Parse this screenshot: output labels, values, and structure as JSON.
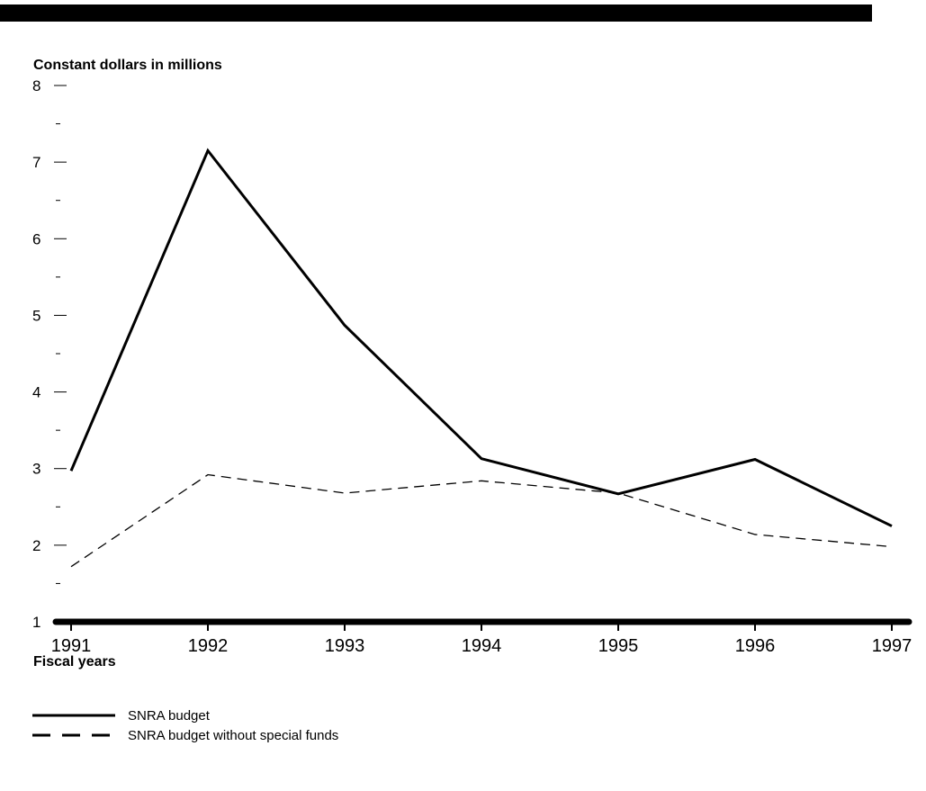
{
  "chart_data": {
    "type": "line",
    "ylabel": "Constant dollars in millions",
    "xlabel": "Fiscal years",
    "ylim": [
      1,
      8
    ],
    "y_tick_labels": [
      "1",
      "2",
      "3",
      "4",
      "5",
      "6",
      "7",
      "8"
    ],
    "x": [
      "1991",
      "1992",
      "1993",
      "1994",
      "1995",
      "1996",
      "1997"
    ],
    "series": [
      {
        "name": "SNRA budget",
        "style": "solid",
        "values": [
          2.97,
          7.15,
          4.87,
          3.13,
          2.67,
          3.12,
          2.25
        ]
      },
      {
        "name": "SNRA budget without special funds",
        "style": "dashed",
        "values": [
          1.72,
          2.92,
          2.68,
          2.84,
          2.68,
          2.14,
          1.98
        ]
      }
    ],
    "grid": false,
    "legend_placement": "bottom-left"
  }
}
